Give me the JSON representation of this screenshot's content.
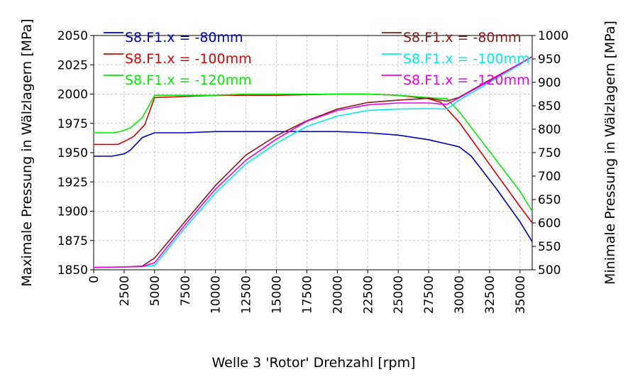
{
  "chart_data": {
    "type": "line",
    "xlabel": "Welle 3 'Rotor' Drehzahl [rpm]",
    "ylabel_left": "Maximale Pressung in Wälzlagern [MPa]",
    "ylabel_right": "Minimale Pressung in Wälzlagern [MPa]",
    "xlim": [
      0,
      36000
    ],
    "ylim_left": [
      1850,
      2050
    ],
    "ylim_right": [
      500,
      1000
    ],
    "grid": true,
    "x_ticks": [
      "0",
      "2500",
      "5000",
      "7500",
      "10000",
      "12500",
      "15000",
      "17500",
      "20000",
      "22500",
      "25000",
      "27500",
      "30000",
      "32500",
      "35000"
    ],
    "y_ticks_left": [
      "1850",
      "1875",
      "1900",
      "1925",
      "1950",
      "1975",
      "2000",
      "2025",
      "2050"
    ],
    "y_ticks_right": [
      "500",
      "550",
      "600",
      "650",
      "700",
      "750",
      "800",
      "850",
      "900",
      "950",
      "1000"
    ],
    "legend_left_position": "top-left",
    "legend_right_position": "top-right",
    "series": [
      {
        "name": "S8.F1.x = -80mm",
        "axis": "left",
        "color": "#0000cc",
        "points": [
          [
            0,
            1947
          ],
          [
            1500,
            1947
          ],
          [
            2500,
            1949
          ],
          [
            3000,
            1952
          ],
          [
            4000,
            1963
          ],
          [
            5000,
            1967
          ],
          [
            7500,
            1967
          ],
          [
            10000,
            1968
          ],
          [
            15000,
            1968
          ],
          [
            17500,
            1968
          ],
          [
            20000,
            1968
          ],
          [
            22500,
            1967
          ],
          [
            25000,
            1965
          ],
          [
            27500,
            1961
          ],
          [
            30000,
            1955
          ],
          [
            31000,
            1947
          ],
          [
            33000,
            1920
          ],
          [
            35000,
            1891
          ],
          [
            36000,
            1874
          ]
        ]
      },
      {
        "name": "S8.F1.x = -100mm",
        "axis": "left",
        "color": "#dd0000",
        "points": [
          [
            0,
            1957
          ],
          [
            2000,
            1957
          ],
          [
            2800,
            1961
          ],
          [
            3300,
            1964
          ],
          [
            4200,
            1974
          ],
          [
            5000,
            1997
          ],
          [
            7500,
            1998
          ],
          [
            10000,
            1999
          ],
          [
            12500,
            1999
          ],
          [
            15000,
            1999
          ],
          [
            20000,
            2000
          ],
          [
            22500,
            2000
          ],
          [
            25000,
            1999
          ],
          [
            27500,
            1996
          ],
          [
            28500,
            1993
          ],
          [
            30000,
            1976
          ],
          [
            32500,
            1940
          ],
          [
            35000,
            1904
          ],
          [
            36000,
            1890
          ]
        ]
      },
      {
        "name": "S8.F1.x = -120mm",
        "axis": "left",
        "color": "#00ee00",
        "points": [
          [
            0,
            1967
          ],
          [
            1500,
            1967
          ],
          [
            2200,
            1968
          ],
          [
            3000,
            1971
          ],
          [
            4000,
            1980
          ],
          [
            5000,
            1999
          ],
          [
            7500,
            1999
          ],
          [
            10000,
            1999
          ],
          [
            12500,
            2000
          ],
          [
            15000,
            2000
          ],
          [
            20000,
            2000
          ],
          [
            22500,
            2000
          ],
          [
            25000,
            1999
          ],
          [
            27500,
            1997
          ],
          [
            29000,
            1996
          ],
          [
            30000,
            1985
          ],
          [
            32500,
            1951
          ],
          [
            35000,
            1917
          ],
          [
            36000,
            1900
          ]
        ]
      },
      {
        "name": "S8.F1.x = -80mm",
        "axis": "right",
        "color": "#8b1a1a",
        "points": [
          [
            0,
            505
          ],
          [
            2500,
            506
          ],
          [
            4000,
            508
          ],
          [
            5000,
            525
          ],
          [
            7500,
            603
          ],
          [
            10000,
            680
          ],
          [
            12500,
            745
          ],
          [
            15000,
            786
          ],
          [
            17500,
            818
          ],
          [
            20000,
            843
          ],
          [
            22500,
            857
          ],
          [
            25000,
            862
          ],
          [
            27500,
            866
          ],
          [
            29000,
            860
          ],
          [
            30000,
            868
          ],
          [
            32500,
            905
          ],
          [
            35000,
            940
          ],
          [
            36000,
            955
          ]
        ]
      },
      {
        "name": "S8.F1.x = -100mm",
        "axis": "right",
        "color": "#00eeee",
        "points": [
          [
            0,
            505
          ],
          [
            2500,
            506
          ],
          [
            4000,
            507
          ],
          [
            5000,
            509
          ],
          [
            7500,
            590
          ],
          [
            10000,
            664
          ],
          [
            12500,
            726
          ],
          [
            15000,
            770
          ],
          [
            17500,
            806
          ],
          [
            20000,
            828
          ],
          [
            22500,
            840
          ],
          [
            25000,
            843
          ],
          [
            27500,
            844
          ],
          [
            29000,
            843
          ],
          [
            30000,
            862
          ],
          [
            32500,
            900
          ],
          [
            35000,
            938
          ],
          [
            36000,
            955
          ]
        ]
      },
      {
        "name": "S8.F1.x = -120mm",
        "axis": "right",
        "color": "#ee00ee",
        "points": [
          [
            0,
            505
          ],
          [
            2500,
            506
          ],
          [
            4000,
            507
          ],
          [
            5000,
            515
          ],
          [
            7500,
            596
          ],
          [
            10000,
            672
          ],
          [
            12500,
            734
          ],
          [
            15000,
            779
          ],
          [
            17500,
            817
          ],
          [
            20000,
            840
          ],
          [
            22500,
            852
          ],
          [
            25000,
            856
          ],
          [
            27500,
            856
          ],
          [
            29000,
            853
          ],
          [
            30000,
            867
          ],
          [
            32500,
            903
          ],
          [
            35000,
            940
          ],
          [
            36000,
            955
          ]
        ]
      }
    ]
  }
}
